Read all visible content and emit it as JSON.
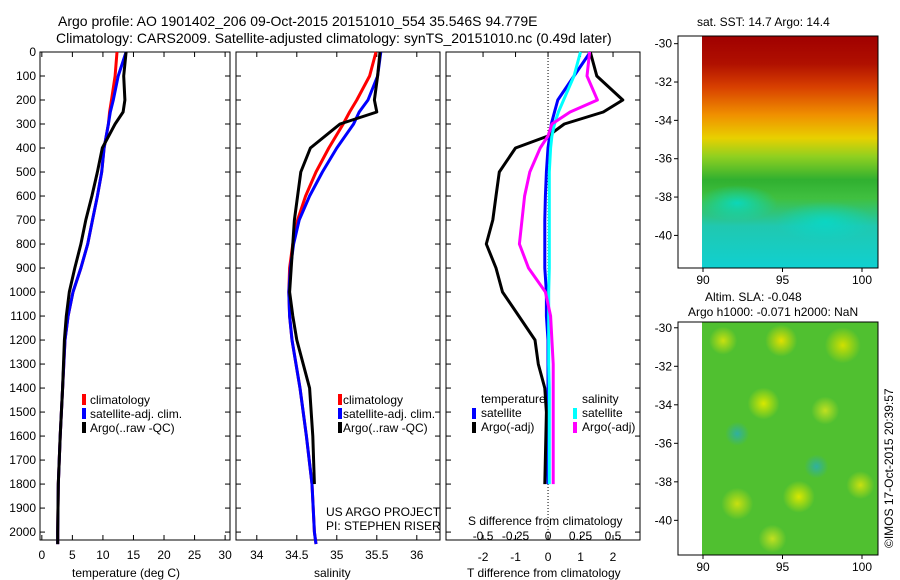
{
  "title_line1": "Argo profile: AO 1901402_206 09-Oct-2015 20151010_554 35.546S 94.779E",
  "title_line2": "Climatology: CARS2009. Satellite-adjusted climatology: synTS_20151010.nc (0.49d later)",
  "colors": {
    "climatology": "#ff0000",
    "satellite": "#0000ff",
    "argo": "#000000",
    "sal_satellite": "#00ffff",
    "sal_argo": "#ff00ff"
  },
  "chart_data": [
    {
      "type": "line",
      "id": "temperature",
      "xlabel": "temperature (deg C)",
      "ylabel": "",
      "xlim": [
        -0.3,
        30.8
      ],
      "ylim": [
        2033,
        0
      ],
      "xticks": [
        "0",
        "5",
        "10",
        "15",
        "20",
        "25",
        "30"
      ],
      "yticks": [
        "0",
        "100",
        "200",
        "300",
        "400",
        "500",
        "600",
        "700",
        "800",
        "900",
        "1000",
        "1100",
        "1200",
        "1300",
        "1400",
        "1500",
        "1600",
        "1700",
        "1800",
        "1900",
        "2000"
      ],
      "depth": [
        0,
        100,
        200,
        250,
        300,
        400,
        500,
        600,
        700,
        800,
        900,
        1000,
        1100,
        1200,
        1400,
        1600,
        1800,
        2000,
        2050
      ],
      "series": [
        {
          "name": "climatology",
          "values": [
            12.3,
            12.0,
            11.4,
            11.1,
            10.9,
            10.2,
            9.8,
            9.1,
            8.3,
            7.5,
            6.4,
            5.1,
            4.3,
            3.8,
            3.4,
            3.0,
            2.7,
            2.6,
            2.6
          ]
        },
        {
          "name": "satellite-adj. clim.",
          "values": [
            13.8,
            12.5,
            11.7,
            11.2,
            10.9,
            10.2,
            9.8,
            9.1,
            8.3,
            7.5,
            6.4,
            5.1,
            4.3,
            3.8,
            3.4,
            3.0,
            2.7,
            2.6,
            2.6
          ]
        },
        {
          "name": "Argo(..raw -QC)",
          "values": [
            13.8,
            13.4,
            13.6,
            13.3,
            12.0,
            9.9,
            9.1,
            8.2,
            7.2,
            6.4,
            5.4,
            4.5,
            4.0,
            3.7,
            3.4,
            3.0,
            2.7,
            2.6,
            2.6
          ]
        }
      ]
    },
    {
      "type": "line",
      "id": "salinity",
      "xlabel": "salinity",
      "xlim": [
        33.74,
        36.29
      ],
      "ylim": [
        2033,
        0
      ],
      "xticks": [
        "34",
        "34.5",
        "35",
        "35.5",
        "36"
      ],
      "depth": [
        0,
        100,
        200,
        250,
        300,
        400,
        500,
        600,
        700,
        800,
        900,
        1000,
        1100,
        1200,
        1400,
        1600,
        1800,
        2000,
        2050
      ],
      "series": [
        {
          "name": "climatology",
          "values": [
            35.49,
            35.41,
            35.25,
            35.16,
            35.08,
            34.9,
            34.74,
            34.61,
            34.51,
            34.45,
            34.41,
            34.4,
            34.41,
            34.44,
            34.54,
            34.62,
            34.69,
            34.72,
            34.74
          ]
        },
        {
          "name": "satellite-adj. clim.",
          "values": [
            35.55,
            35.51,
            35.39,
            35.28,
            35.21,
            35.0,
            34.82,
            34.66,
            34.53,
            34.46,
            34.42,
            34.4,
            34.41,
            34.44,
            34.54,
            34.62,
            34.69,
            34.72,
            34.74
          ]
        },
        {
          "name": "Argo(..raw -QC)",
          "values": [
            35.54,
            35.51,
            35.47,
            35.5,
            35.04,
            34.67,
            34.55,
            34.51,
            34.47,
            34.45,
            34.43,
            34.41,
            34.45,
            34.5,
            34.66,
            34.7,
            34.72,
            null,
            null
          ]
        }
      ],
      "annotations": [
        "US ARGO PROJECT",
        "PI: STEPHEN RISER"
      ]
    },
    {
      "type": "line",
      "id": "difference",
      "xlabel": "T difference from climatology",
      "x2label": "S difference from climatology",
      "xlim": [
        -3.14,
        2.83
      ],
      "ylim": [
        2033,
        0
      ],
      "xticks": [
        "-2",
        "-1",
        "0",
        "1",
        "2"
      ],
      "x2ticks": [
        "-0.5",
        "-0.25",
        "0",
        "0.25",
        "0.5"
      ],
      "depth": [
        0,
        100,
        200,
        250,
        300,
        350,
        400,
        500,
        600,
        700,
        800,
        900,
        1000,
        1100,
        1200,
        1300,
        1400,
        1500,
        1800
      ],
      "series": [
        {
          "name": "temperature satellite",
          "axis": "T",
          "values": [
            1.3,
            0.8,
            0.3,
            0.2,
            0.1,
            0.05,
            0,
            -0.05,
            -0.08,
            -0.1,
            -0.1,
            -0.1,
            -0.05,
            -0.05,
            0,
            0,
            0,
            0,
            0
          ]
        },
        {
          "name": "temperature Argo(-adj)",
          "axis": "T",
          "values": [
            1.3,
            1.5,
            2.3,
            1.7,
            0.5,
            0,
            -1.0,
            -1.5,
            -1.6,
            -1.7,
            -1.9,
            -1.6,
            -1.4,
            -0.9,
            -0.4,
            -0.3,
            -0.1,
            -0.05,
            -0.1
          ]
        },
        {
          "name": "salinity satellite",
          "axis": "S",
          "values": [
            0.25,
            0.2,
            0.12,
            0.08,
            0.05,
            0.03,
            0.02,
            0.01,
            0.01,
            0.01,
            0.01,
            0.01,
            0.005,
            0.005,
            0.005,
            0.005,
            0.01,
            0.01,
            0.01
          ]
        },
        {
          "name": "salinity Argo(-adj)",
          "axis": "S",
          "values": [
            0.32,
            0.3,
            0.38,
            0.17,
            0.03,
            0,
            -0.06,
            -0.14,
            -0.18,
            -0.2,
            -0.22,
            -0.15,
            -0.02,
            0.02,
            0.03,
            0.04,
            0.04,
            0.04,
            0.04
          ]
        }
      ],
      "legend": {
        "temp_title": "temperature",
        "sal_title": "salinity",
        "satellite": "satellite",
        "argo": "Argo(-adj)"
      }
    },
    {
      "type": "heatmap",
      "id": "sst-map",
      "title": "sat. SST: 14.7 Argo: 14.4",
      "xticks": [
        "90",
        "95",
        "100"
      ],
      "yticks": [
        "-30",
        "-32",
        "-34",
        "-36",
        "-38",
        "-40"
      ]
    },
    {
      "type": "heatmap",
      "id": "sla-map",
      "title_line1": "Altim. SLA: -0.048",
      "title_line2": "Argo h1000: -0.071 h2000: NaN",
      "xticks": [
        "90",
        "95",
        "100"
      ],
      "yticks": [
        "-30",
        "-32",
        "-34",
        "-36",
        "-38",
        "-40"
      ]
    }
  ],
  "copyright": "©IMOS 17-Oct-2015 20:39:57"
}
